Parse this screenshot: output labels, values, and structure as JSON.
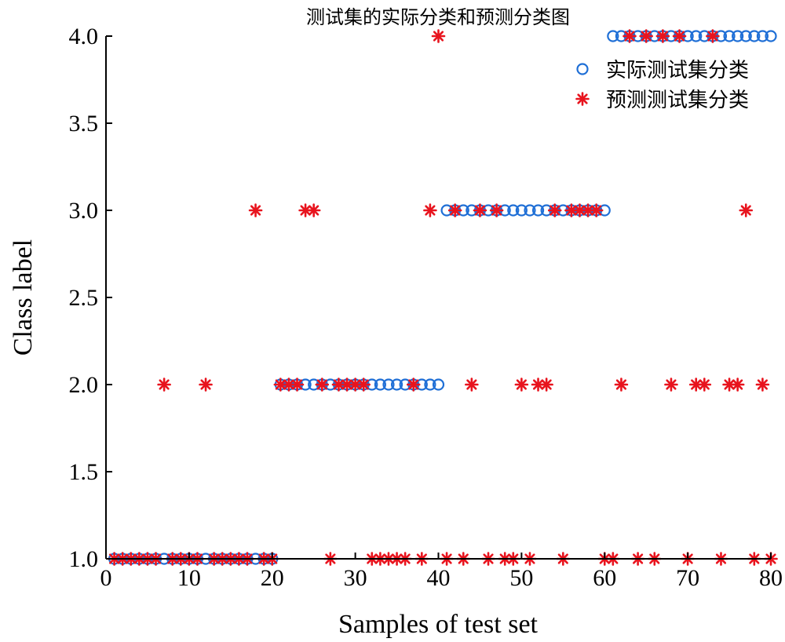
{
  "chart_data": {
    "type": "scatter",
    "title": "测试集的实际分类和预测分类图",
    "xlabel": "Samples of test set",
    "ylabel": "Class label",
    "xlim": [
      0,
      80
    ],
    "ylim": [
      1.0,
      4.0
    ],
    "xticks": [
      "0",
      "10",
      "20",
      "30",
      "40",
      "50",
      "60",
      "70",
      "80"
    ],
    "yticks": [
      "1.0",
      "1.5",
      "2.0",
      "2.5",
      "3.0",
      "3.5",
      "4.0"
    ],
    "legend_position": "top-right",
    "grid": false,
    "series": [
      {
        "name": "实际测试集分类",
        "marker": "circle",
        "color": "#1f6fd6",
        "x": [
          1,
          2,
          3,
          4,
          5,
          6,
          7,
          8,
          9,
          10,
          11,
          12,
          13,
          14,
          15,
          16,
          17,
          18,
          19,
          20,
          21,
          22,
          23,
          24,
          25,
          26,
          27,
          28,
          29,
          30,
          31,
          32,
          33,
          34,
          35,
          36,
          37,
          38,
          39,
          40,
          41,
          42,
          43,
          44,
          45,
          46,
          47,
          48,
          49,
          50,
          51,
          52,
          53,
          54,
          55,
          56,
          57,
          58,
          59,
          60,
          61,
          62,
          63,
          64,
          65,
          66,
          67,
          68,
          69,
          70,
          71,
          72,
          73,
          74,
          75,
          76,
          77,
          78,
          79,
          80
        ],
        "y": [
          1,
          1,
          1,
          1,
          1,
          1,
          1,
          1,
          1,
          1,
          1,
          1,
          1,
          1,
          1,
          1,
          1,
          1,
          1,
          1,
          2,
          2,
          2,
          2,
          2,
          2,
          2,
          2,
          2,
          2,
          2,
          2,
          2,
          2,
          2,
          2,
          2,
          2,
          2,
          2,
          3,
          3,
          3,
          3,
          3,
          3,
          3,
          3,
          3,
          3,
          3,
          3,
          3,
          3,
          3,
          3,
          3,
          3,
          3,
          3,
          4,
          4,
          4,
          4,
          4,
          4,
          4,
          4,
          4,
          4,
          4,
          4,
          4,
          4,
          4,
          4,
          4,
          4,
          4,
          4
        ]
      },
      {
        "name": "预测测试集分类",
        "marker": "asterisk",
        "color": "#e8141e",
        "x": [
          1,
          2,
          3,
          4,
          5,
          6,
          7,
          8,
          9,
          10,
          11,
          12,
          13,
          14,
          15,
          16,
          17,
          18,
          19,
          20,
          21,
          22,
          23,
          24,
          25,
          26,
          27,
          28,
          29,
          30,
          31,
          32,
          33,
          34,
          35,
          36,
          37,
          38,
          39,
          40,
          41,
          42,
          43,
          44,
          45,
          46,
          47,
          48,
          49,
          50,
          51,
          52,
          53,
          54,
          55,
          56,
          57,
          58,
          59,
          60,
          61,
          62,
          63,
          64,
          65,
          66,
          67,
          68,
          69,
          70,
          71,
          72,
          73,
          74,
          75,
          76,
          77,
          78,
          79,
          80
        ],
        "y": [
          1,
          1,
          1,
          1,
          1,
          1,
          2,
          1,
          1,
          1,
          1,
          2,
          1,
          1,
          1,
          1,
          1,
          3,
          1,
          1,
          2,
          2,
          2,
          3,
          3,
          2,
          1,
          2,
          2,
          2,
          2,
          1,
          1,
          1,
          1,
          1,
          2,
          1,
          3,
          4,
          1,
          3,
          1,
          2,
          3,
          1,
          3,
          1,
          1,
          2,
          1,
          2,
          2,
          3,
          1,
          3,
          3,
          3,
          3,
          1,
          1,
          2,
          4,
          1,
          4,
          1,
          4,
          2,
          4,
          1,
          2,
          2,
          4,
          1,
          2,
          2,
          3,
          1,
          2,
          1
        ]
      }
    ]
  }
}
